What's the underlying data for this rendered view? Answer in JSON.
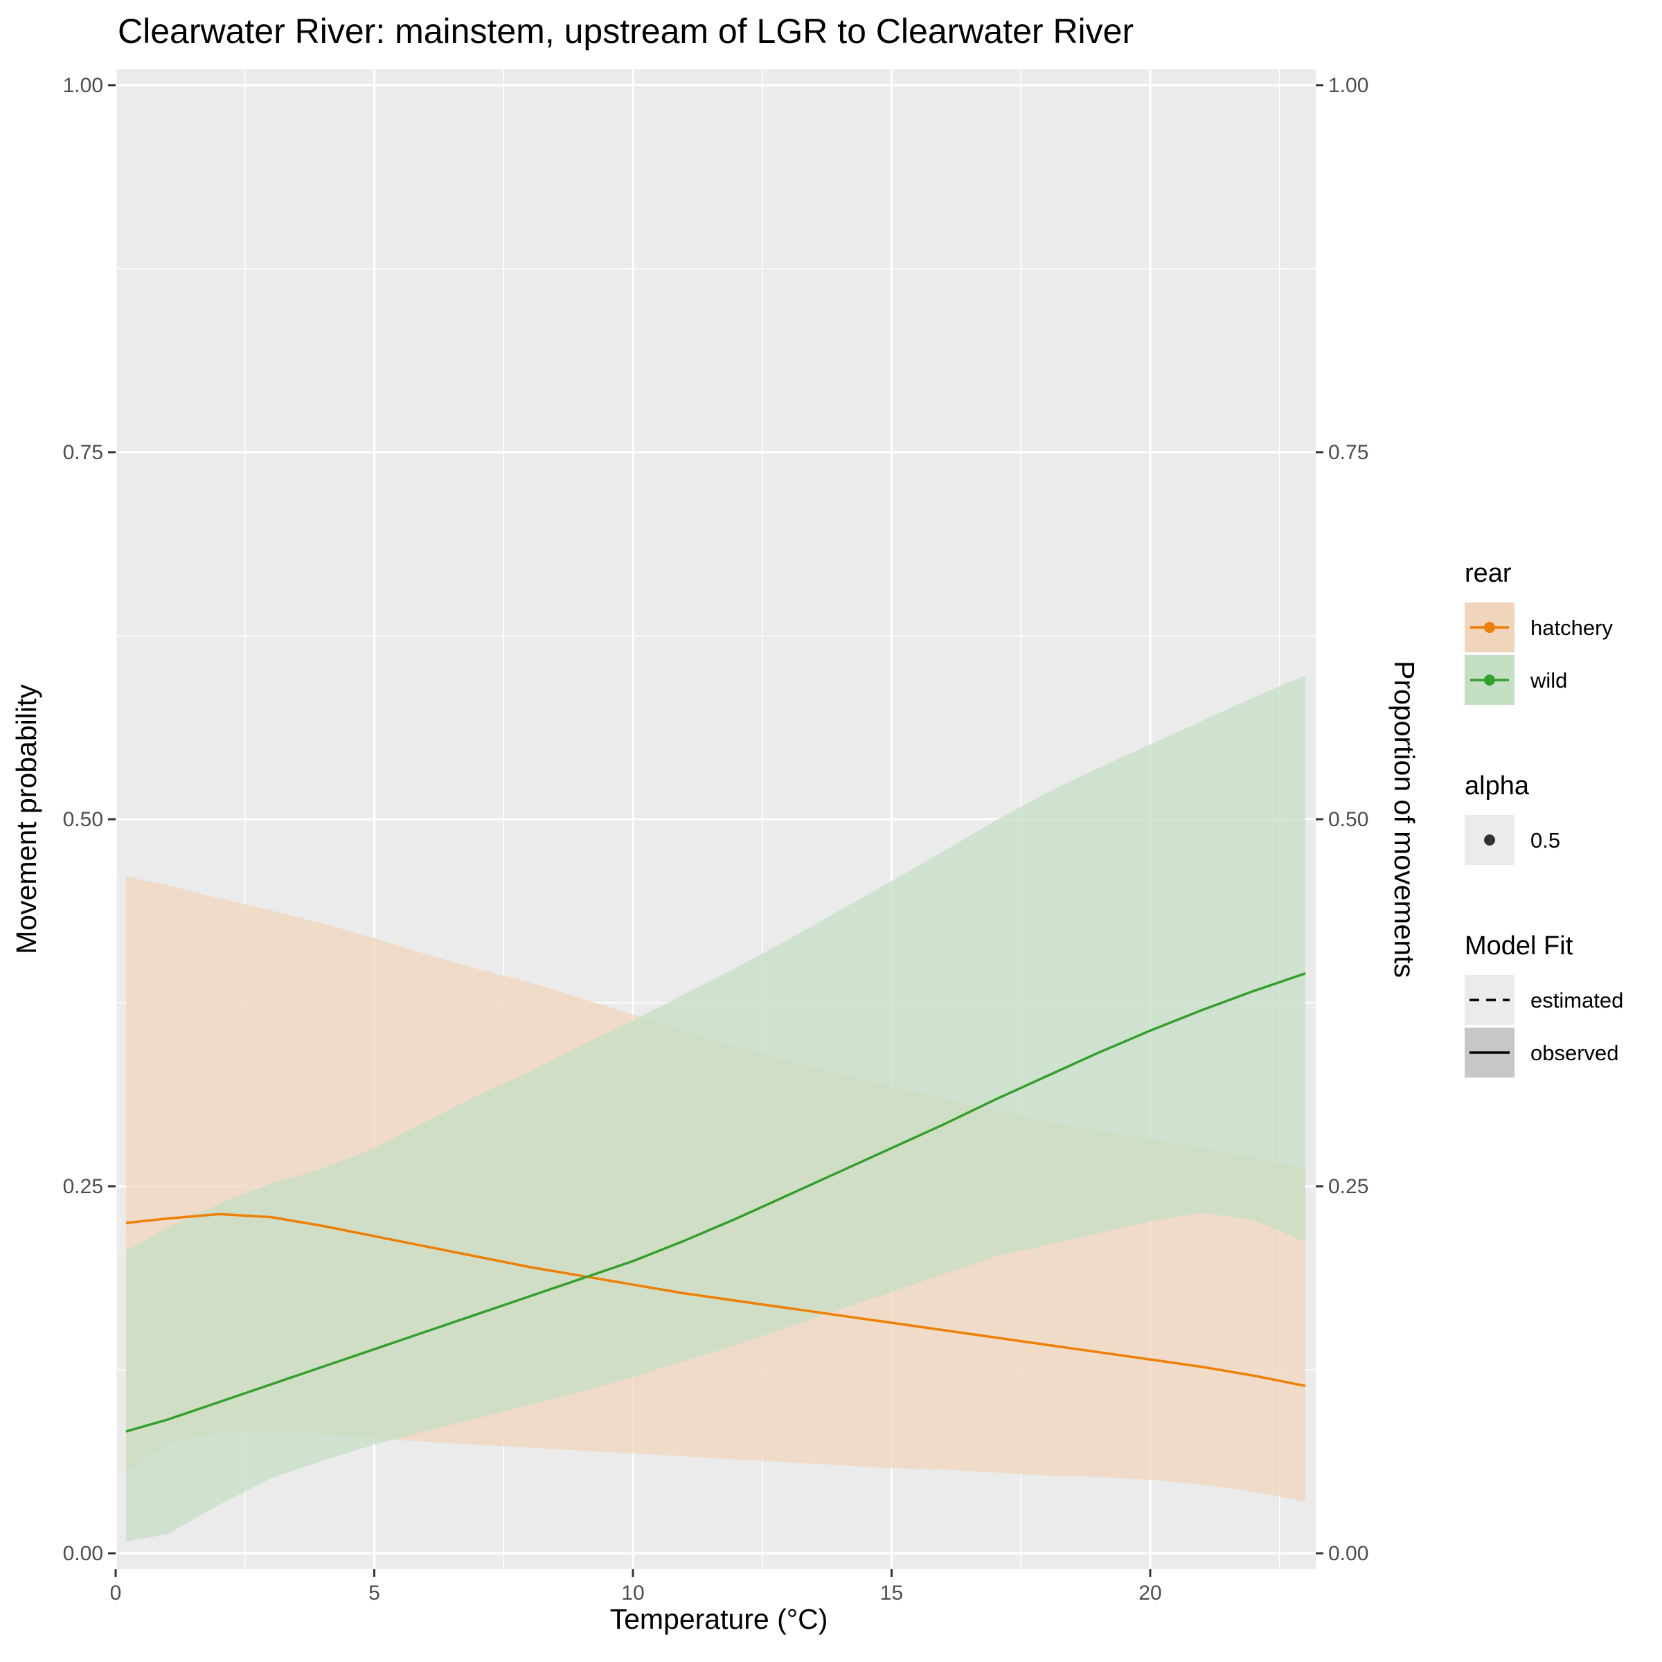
{
  "chart_data": {
    "type": "line",
    "title": "Clearwater River: mainstem, upstream of LGR to Clearwater River",
    "xlabel": "Temperature (°C)",
    "ylabel": "Movement probability",
    "ylabel_right": "Proportion of movements",
    "xlim": [
      0,
      23.2
    ],
    "ylim": [
      0,
      1
    ],
    "x_ticks": [
      0,
      5,
      10,
      15,
      20
    ],
    "x_tick_labels": [
      "0",
      "5",
      "10",
      "15",
      "20"
    ],
    "y_ticks": [
      0,
      0.25,
      0.5,
      0.75,
      1
    ],
    "y_tick_labels": [
      "0.00",
      "0.25",
      "0.50",
      "0.75",
      "1.00"
    ],
    "grid": true,
    "x": [
      0.2,
      1,
      2,
      3,
      4,
      5,
      6,
      7,
      8,
      9,
      10,
      11,
      12,
      13,
      14,
      15,
      16,
      17,
      18,
      19,
      20,
      21,
      22,
      23
    ],
    "series": [
      {
        "name": "hatchery",
        "color": "#ee7f00",
        "fill_color": "#f0d5bc",
        "y": [
          0.225,
          0.228,
          0.231,
          0.229,
          0.223,
          0.216,
          0.209,
          0.202,
          0.195,
          0.189,
          0.183,
          0.177,
          0.172,
          0.167,
          0.162,
          0.157,
          0.152,
          0.147,
          0.142,
          0.137,
          0.132,
          0.127,
          0.121,
          0.114
        ],
        "lower": [
          0.055,
          0.075,
          0.082,
          0.083,
          0.081,
          0.078,
          0.076,
          0.074,
          0.072,
          0.07,
          0.068,
          0.066,
          0.064,
          0.062,
          0.06,
          0.058,
          0.057,
          0.055,
          0.053,
          0.052,
          0.05,
          0.047,
          0.042,
          0.035
        ],
        "upper": [
          0.461,
          0.455,
          0.446,
          0.438,
          0.429,
          0.419,
          0.408,
          0.398,
          0.389,
          0.378,
          0.367,
          0.356,
          0.345,
          0.336,
          0.327,
          0.318,
          0.31,
          0.302,
          0.294,
          0.288,
          0.282,
          0.276,
          0.27,
          0.262
        ]
      },
      {
        "name": "wild",
        "color": "#33a02c",
        "fill_color": "#c5dfc5",
        "y": [
          0.083,
          0.091,
          0.103,
          0.115,
          0.127,
          0.139,
          0.151,
          0.163,
          0.175,
          0.187,
          0.199,
          0.213,
          0.228,
          0.244,
          0.26,
          0.276,
          0.292,
          0.309,
          0.325,
          0.341,
          0.356,
          0.37,
          0.383,
          0.395
        ],
        "lower": [
          0.008,
          0.013,
          0.033,
          0.051,
          0.063,
          0.074,
          0.083,
          0.092,
          0.101,
          0.11,
          0.12,
          0.131,
          0.142,
          0.154,
          0.166,
          0.178,
          0.19,
          0.202,
          0.21,
          0.218,
          0.226,
          0.232,
          0.227,
          0.212
        ],
        "upper": [
          0.206,
          0.222,
          0.238,
          0.252,
          0.262,
          0.276,
          0.294,
          0.312,
          0.328,
          0.346,
          0.363,
          0.381,
          0.399,
          0.418,
          0.438,
          0.458,
          0.478,
          0.499,
          0.518,
          0.535,
          0.551,
          0.567,
          0.583,
          0.598
        ]
      }
    ],
    "legends": [
      {
        "title": "rear",
        "items": [
          {
            "label": "hatchery",
            "color": "#ee7f00",
            "fill_color": "#f0d5bc"
          },
          {
            "label": "wild",
            "color": "#33a02c",
            "fill_color": "#c5dfc5"
          }
        ]
      },
      {
        "title": "alpha",
        "items": [
          {
            "label": "0.5",
            "color": "#333333"
          }
        ]
      },
      {
        "title": "Model Fit",
        "items": [
          {
            "label": "estimated",
            "line": "dashed"
          },
          {
            "label": "observed",
            "line": "solid"
          }
        ]
      }
    ],
    "legend_position": "right"
  }
}
